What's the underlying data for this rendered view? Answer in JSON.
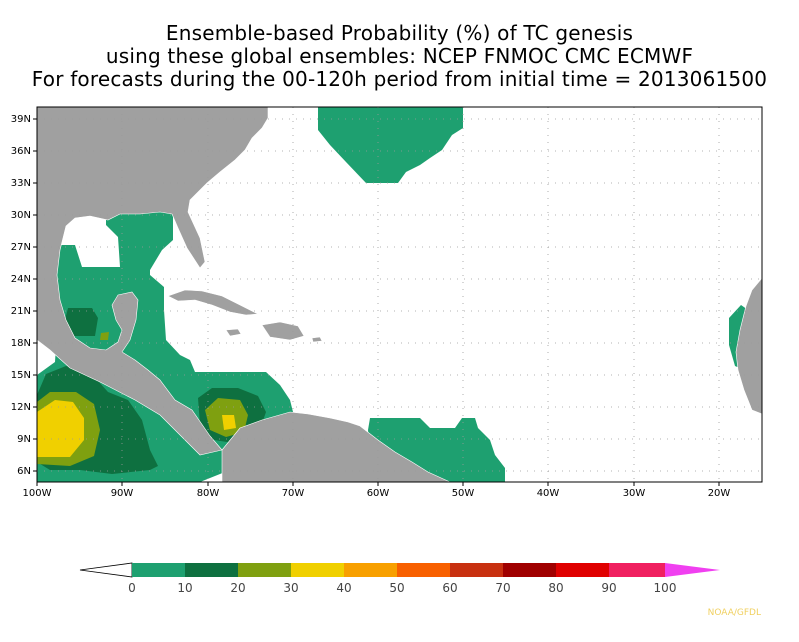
{
  "title": {
    "line1": "Ensemble-based Probability (%) of TC genesis",
    "line2": "using these global ensembles:   NCEP FNMOC CMC ECMWF",
    "line3": "For forecasts during the 00-120h period from initial time = 2013061500"
  },
  "map": {
    "lon_range": [
      -100,
      -15
    ],
    "lat_range": [
      5,
      40
    ],
    "lat_ticks": [
      {
        "value": 39,
        "label": "39N"
      },
      {
        "value": 36,
        "label": "36N"
      },
      {
        "value": 33,
        "label": "33N"
      },
      {
        "value": 30,
        "label": "30N"
      },
      {
        "value": 27,
        "label": "27N"
      },
      {
        "value": 24,
        "label": "24N"
      },
      {
        "value": 21,
        "label": "21N"
      },
      {
        "value": 18,
        "label": "18N"
      },
      {
        "value": 15,
        "label": "15N"
      },
      {
        "value": 12,
        "label": "12N"
      },
      {
        "value": 9,
        "label": "9N"
      },
      {
        "value": 6,
        "label": "6N"
      }
    ],
    "lon_ticks": [
      {
        "value": -100,
        "label": "100W"
      },
      {
        "value": -90,
        "label": "90W"
      },
      {
        "value": -80,
        "label": "80W"
      },
      {
        "value": -70,
        "label": "70W"
      },
      {
        "value": -60,
        "label": "60W"
      },
      {
        "value": -50,
        "label": "50W"
      },
      {
        "value": -40,
        "label": "40W"
      },
      {
        "value": -30,
        "label": "30W"
      },
      {
        "value": -20,
        "label": "20W"
      }
    ],
    "land_color": "#a0a0a0",
    "ocean_color": "#ffffff",
    "grid": true
  },
  "colorbar": {
    "ticks": [
      "0",
      "10",
      "20",
      "30",
      "40",
      "50",
      "60",
      "70",
      "80",
      "90",
      "100"
    ],
    "colors": [
      "#1ea070",
      "#0e7040",
      "#7fa010",
      "#f0d000",
      "#f8a000",
      "#f86000",
      "#c83010",
      "#a00000",
      "#e00000",
      "#f02060"
    ],
    "under_color": "#ffffff",
    "over_color": "#f040f0"
  },
  "credit": "NOAA/GFDL"
}
